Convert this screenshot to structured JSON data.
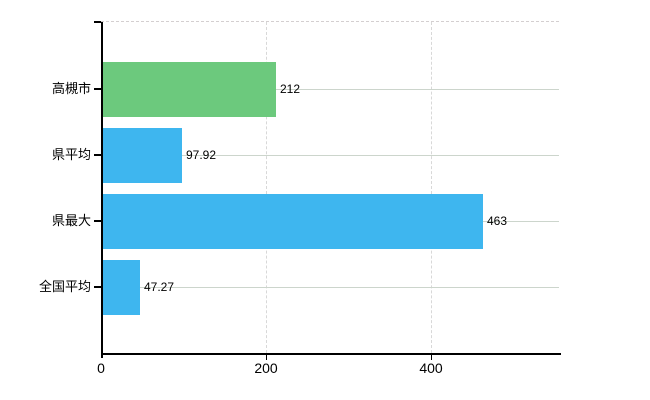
{
  "chart_data": {
    "type": "bar",
    "orientation": "horizontal",
    "title": "",
    "xlabel": "",
    "ylabel": "",
    "categories": [
      "高槻市",
      "県平均",
      "県最大",
      "全国平均"
    ],
    "values": [
      212,
      97.92,
      463,
      47.27
    ],
    "value_labels": [
      "212",
      "97.92",
      "463",
      "47.27"
    ],
    "bar_colors": [
      "#6cc97d",
      "#3eb6ef",
      "#3eb6ef",
      "#3eb6ef"
    ],
    "x_ticks": [
      0,
      200,
      400
    ],
    "x_tick_labels": [
      "0",
      "200",
      "400"
    ],
    "xlim": [
      0,
      555
    ],
    "grid": "on",
    "legend": "none",
    "colors": {
      "bar_green": "#6cc97d",
      "bar_blue": "#3eb6ef",
      "h_gridline": "#ccd5cc",
      "v_gridline": "#d8d8d8",
      "plot_top_border": "#d4cfd0",
      "axis": "#000000",
      "text": "#000000",
      "background": "#ffffff"
    }
  }
}
